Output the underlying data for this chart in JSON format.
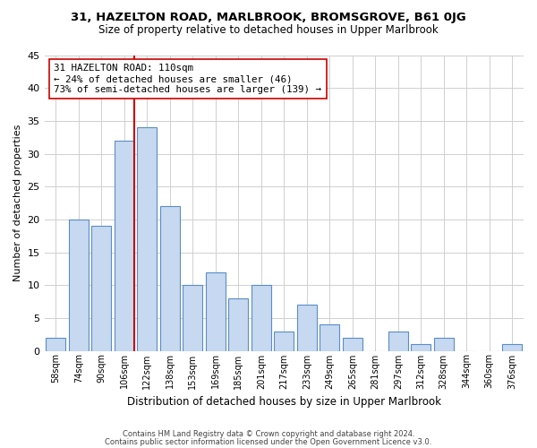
{
  "title": "31, HAZELTON ROAD, MARLBROOK, BROMSGROVE, B61 0JG",
  "subtitle": "Size of property relative to detached houses in Upper Marlbrook",
  "xlabel": "Distribution of detached houses by size in Upper Marlbrook",
  "ylabel": "Number of detached properties",
  "footer1": "Contains HM Land Registry data © Crown copyright and database right 2024.",
  "footer2": "Contains public sector information licensed under the Open Government Licence v3.0.",
  "bar_labels": [
    "58sqm",
    "74sqm",
    "90sqm",
    "106sqm",
    "122sqm",
    "138sqm",
    "153sqm",
    "169sqm",
    "185sqm",
    "201sqm",
    "217sqm",
    "233sqm",
    "249sqm",
    "265sqm",
    "281sqm",
    "297sqm",
    "312sqm",
    "328sqm",
    "344sqm",
    "360sqm",
    "376sqm"
  ],
  "bar_values": [
    2,
    20,
    19,
    32,
    34,
    22,
    10,
    12,
    8,
    10,
    3,
    7,
    4,
    2,
    0,
    3,
    1,
    2,
    0,
    0,
    1
  ],
  "bar_color": "#c6d9f0",
  "bar_edge_color": "#5a8dc5",
  "highlight_bar_index": 3,
  "highlight_color": "#cc0000",
  "annotation_title": "31 HAZELTON ROAD: 110sqm",
  "annotation_line1": "← 24% of detached houses are smaller (46)",
  "annotation_line2": "73% of semi-detached houses are larger (139) →",
  "annotation_box_color": "#ffffff",
  "annotation_box_edge": "#cc0000",
  "ylim": [
    0,
    45
  ],
  "yticks": [
    0,
    5,
    10,
    15,
    20,
    25,
    30,
    35,
    40,
    45
  ],
  "bg_color": "#ffffff",
  "grid_color": "#d0d0d0"
}
